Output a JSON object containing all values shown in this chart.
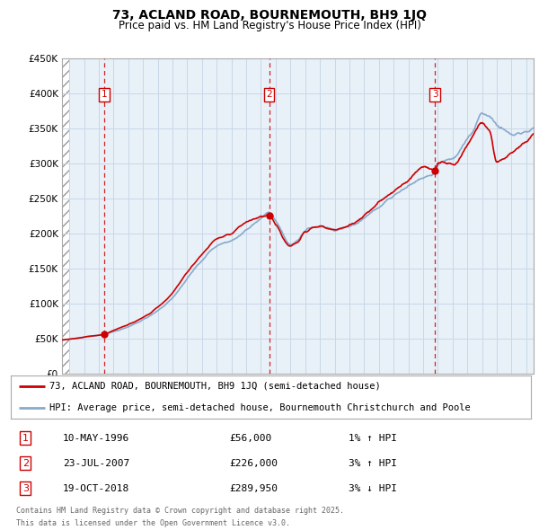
{
  "title": "73, ACLAND ROAD, BOURNEMOUTH, BH9 1JQ",
  "subtitle": "Price paid vs. HM Land Registry's House Price Index (HPI)",
  "legend_line1": "73, ACLAND ROAD, BOURNEMOUTH, BH9 1JQ (semi-detached house)",
  "legend_line2": "HPI: Average price, semi-detached house, Bournemouth Christchurch and Poole",
  "footer_line1": "Contains HM Land Registry data © Crown copyright and database right 2025.",
  "footer_line2": "This data is licensed under the Open Government Licence v3.0.",
  "sale_color": "#cc0000",
  "hpi_color": "#88aacc",
  "grid_color": "#c8d8e8",
  "ylim": [
    0,
    450000
  ],
  "yticks": [
    0,
    50000,
    100000,
    150000,
    200000,
    250000,
    300000,
    350000,
    400000,
    450000
  ],
  "xlim_start": 1993.5,
  "xlim_end": 2025.5,
  "transactions": [
    {
      "label": "1",
      "date": "10-MAY-1996",
      "price": 56000,
      "year": 1996.36,
      "pct": "1%",
      "dir": "↑"
    },
    {
      "label": "2",
      "date": "23-JUL-2007",
      "price": 226000,
      "year": 2007.55,
      "pct": "3%",
      "dir": "↑"
    },
    {
      "label": "3",
      "date": "19-OCT-2018",
      "price": 289950,
      "year": 2018.8,
      "pct": "3%",
      "dir": "↓"
    }
  ],
  "background_chart": "#e8f0f8",
  "background_fig": "#ffffff"
}
